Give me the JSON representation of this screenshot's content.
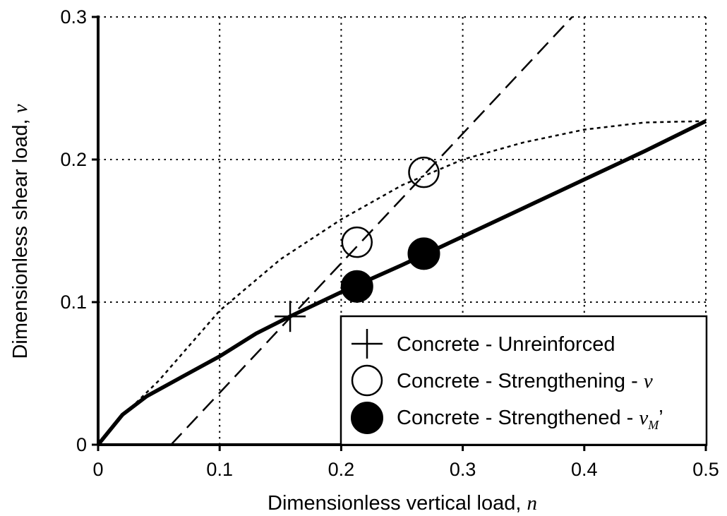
{
  "chart_data": {
    "type": "scatter",
    "xlabel": "Dimensionless vertical load, ",
    "xlabel_var": "n",
    "ylabel": "Dimensionless shear load, ",
    "ylabel_var": "v",
    "xlim": [
      0,
      0.5
    ],
    "ylim": [
      0,
      0.3
    ],
    "xticks": [
      "0",
      "0.1",
      "0.2",
      "0.3",
      "0.4",
      "0.5"
    ],
    "yticks": [
      "0",
      "0.1",
      "0.2",
      "0.3"
    ],
    "grid": true,
    "grid_style": "dotted",
    "legend_position": "bottom-right",
    "legend": [
      {
        "label": "Concrete - Unreinforced",
        "var": "",
        "sub": "",
        "suffix": "",
        "marker": "plus"
      },
      {
        "label": "Concrete - Strengthening - ",
        "var": "v",
        "sub": "",
        "suffix": "",
        "marker": "open-circle"
      },
      {
        "label": "Concrete - Strengthened - ",
        "var": "v",
        "sub": "M",
        "suffix": "’",
        "marker": "filled-circle"
      }
    ],
    "curves": [
      {
        "style": "solid-thick",
        "x": [
          0,
          0.02,
          0.04,
          0.07,
          0.1,
          0.13,
          0.158,
          0.2,
          0.25,
          0.3,
          0.35,
          0.4,
          0.45,
          0.5
        ],
        "y": [
          0,
          0.021,
          0.034,
          0.048,
          0.062,
          0.078,
          0.09,
          0.107,
          0.126,
          0.146,
          0.166,
          0.186,
          0.206,
          0.227
        ]
      },
      {
        "style": "dotted",
        "x": [
          0,
          0.02,
          0.05,
          0.1,
          0.15,
          0.2,
          0.25,
          0.3,
          0.35,
          0.4,
          0.45,
          0.5
        ],
        "y": [
          0,
          0.02,
          0.045,
          0.094,
          0.13,
          0.158,
          0.182,
          0.2,
          0.212,
          0.221,
          0.226,
          0.227
        ]
      },
      {
        "style": "dashed",
        "x": [
          0.06,
          0.39
        ],
        "y": [
          0,
          0.3
        ]
      }
    ],
    "series": [
      {
        "marker": "plus",
        "points": [
          {
            "x": 0.158,
            "y": 0.09
          }
        ]
      },
      {
        "marker": "open-circle",
        "points": [
          {
            "x": 0.213,
            "y": 0.142
          },
          {
            "x": 0.268,
            "y": 0.191
          }
        ]
      },
      {
        "marker": "filled-circle",
        "points": [
          {
            "x": 0.213,
            "y": 0.111
          },
          {
            "x": 0.268,
            "y": 0.134
          }
        ]
      }
    ]
  }
}
